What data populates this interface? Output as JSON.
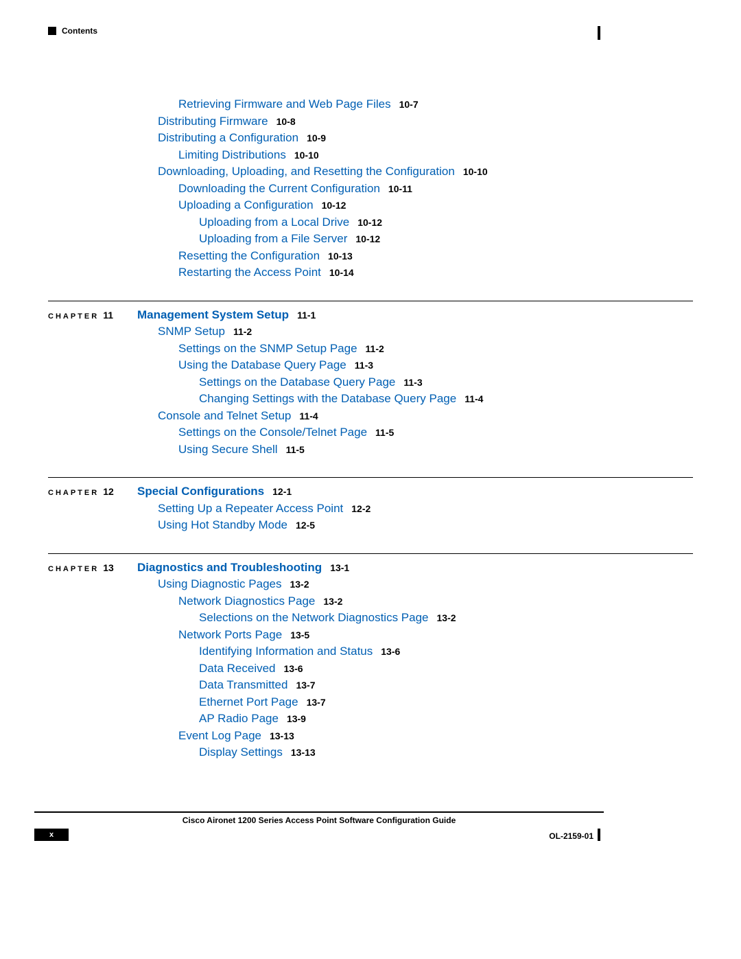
{
  "colors": {
    "link": "#005fb3",
    "text_black": "#000000",
    "background": "#ffffff"
  },
  "header": {
    "label": "Contents"
  },
  "pre_items": [
    {
      "indent": 2,
      "text": "Retrieving Firmware and Web Page Files",
      "page": "10-7"
    },
    {
      "indent": 1,
      "text": "Distributing Firmware",
      "page": "10-8"
    },
    {
      "indent": 1,
      "text": "Distributing a Configuration",
      "page": "10-9"
    },
    {
      "indent": 2,
      "text": "Limiting Distributions",
      "page": "10-10"
    },
    {
      "indent": 1,
      "text": "Downloading, Uploading, and Resetting the Configuration",
      "page": "10-10"
    },
    {
      "indent": 2,
      "text": "Downloading the Current Configuration",
      "page": "10-11"
    },
    {
      "indent": 2,
      "text": "Uploading a Configuration",
      "page": "10-12"
    },
    {
      "indent": 3,
      "text": "Uploading from a Local Drive",
      "page": "10-12"
    },
    {
      "indent": 3,
      "text": "Uploading from a File Server",
      "page": "10-12"
    },
    {
      "indent": 2,
      "text": "Resetting the Configuration",
      "page": "10-13"
    },
    {
      "indent": 2,
      "text": "Restarting the Access Point",
      "page": "10-14"
    }
  ],
  "chapters": [
    {
      "label": "CHAPTER",
      "num": "11",
      "title": "Management System Setup",
      "title_page": "11-1",
      "items": [
        {
          "indent": 1,
          "text": "SNMP Setup",
          "page": "11-2"
        },
        {
          "indent": 2,
          "text": "Settings on the SNMP Setup Page",
          "page": "11-2"
        },
        {
          "indent": 2,
          "text": "Using the Database Query Page",
          "page": "11-3"
        },
        {
          "indent": 3,
          "text": "Settings on the Database Query Page",
          "page": "11-3"
        },
        {
          "indent": 3,
          "text": "Changing Settings with the Database Query Page",
          "page": "11-4"
        },
        {
          "indent": 1,
          "text": "Console and Telnet Setup",
          "page": "11-4"
        },
        {
          "indent": 2,
          "text": "Settings on the Console/Telnet Page",
          "page": "11-5"
        },
        {
          "indent": 2,
          "text": "Using Secure Shell",
          "page": "11-5"
        }
      ]
    },
    {
      "label": "CHAPTER",
      "num": "12",
      "title": "Special Configurations",
      "title_page": "12-1",
      "items": [
        {
          "indent": 1,
          "text": "Setting Up a Repeater Access Point",
          "page": "12-2"
        },
        {
          "indent": 1,
          "text": "Using Hot Standby Mode",
          "page": "12-5"
        }
      ]
    },
    {
      "label": "CHAPTER",
      "num": "13",
      "title": "Diagnostics and Troubleshooting",
      "title_page": "13-1",
      "items": [
        {
          "indent": 1,
          "text": "Using Diagnostic Pages",
          "page": "13-2"
        },
        {
          "indent": 2,
          "text": "Network Diagnostics Page",
          "page": "13-2"
        },
        {
          "indent": 3,
          "text": "Selections on the Network Diagnostics Page",
          "page": "13-2"
        },
        {
          "indent": 2,
          "text": "Network Ports Page",
          "page": "13-5"
        },
        {
          "indent": 3,
          "text": "Identifying Information and Status",
          "page": "13-6"
        },
        {
          "indent": 3,
          "text": "Data Received",
          "page": "13-6"
        },
        {
          "indent": 3,
          "text": "Data Transmitted",
          "page": "13-7"
        },
        {
          "indent": 3,
          "text": "Ethernet Port Page",
          "page": "13-7"
        },
        {
          "indent": 3,
          "text": "AP Radio Page",
          "page": "13-9"
        },
        {
          "indent": 2,
          "text": "Event Log Page",
          "page": "13-13"
        },
        {
          "indent": 3,
          "text": "Display Settings",
          "page": "13-13"
        }
      ]
    }
  ],
  "footer": {
    "title": "Cisco Aironet 1200 Series Access Point Software Configuration Guide",
    "page_roman": "x",
    "doc_id": "OL-2159-01"
  }
}
